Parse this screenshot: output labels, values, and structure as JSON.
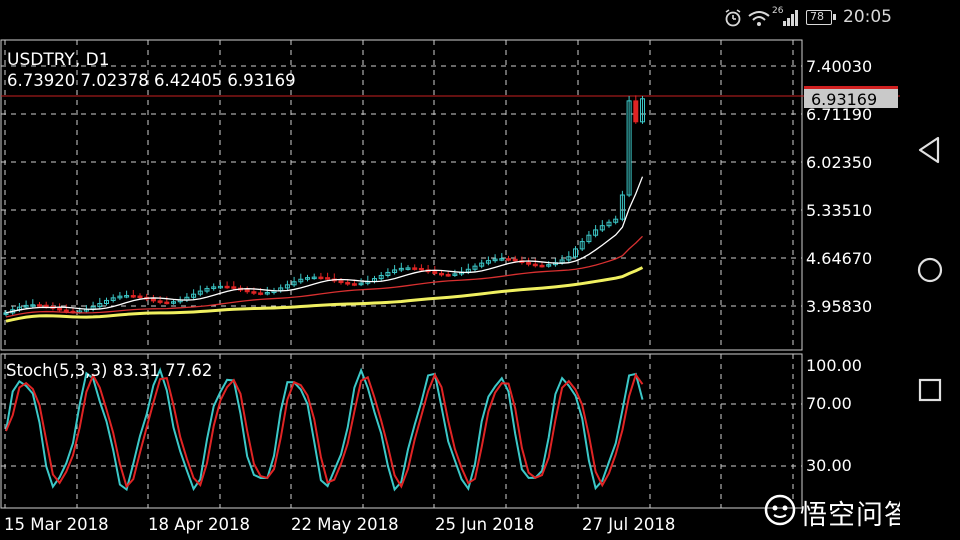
{
  "status_bar": {
    "time": "20:05",
    "battery": "78",
    "network": "26"
  },
  "main_chart": {
    "symbol_title": "USDTRY, D1",
    "ohlc": "6.73920 7.02378 6.42405 6.93169",
    "price_labels": [
      "7.40030",
      "6.71190",
      "6.02350",
      "5.33510",
      "4.64670",
      "3.95830"
    ],
    "last_price": "6.93169"
  },
  "indicator": {
    "title": "Stoch(5,3,3) 83.31 77.62",
    "levels": [
      "100.00",
      "70.00",
      "30.00"
    ]
  },
  "x_axis": {
    "dates": [
      "15 Mar 2018",
      "18 Apr 2018",
      "22 May 2018",
      "25 Jun 2018",
      "27 Jul 2018"
    ]
  },
  "colors": {
    "bull": "#3cc8c8",
    "bear": "#e02424",
    "ma_fast": "#ffffff",
    "ma_mid": "#d83030",
    "ma_slow": "#f0f060",
    "stoch_main": "#3cc8c8",
    "stoch_signal": "#e02424",
    "grid": "#cfcfcf"
  },
  "watermark": {
    "text": "悟空问答"
  },
  "nav_icons": [
    "back-icon",
    "home-icon",
    "recents-icon"
  ]
}
